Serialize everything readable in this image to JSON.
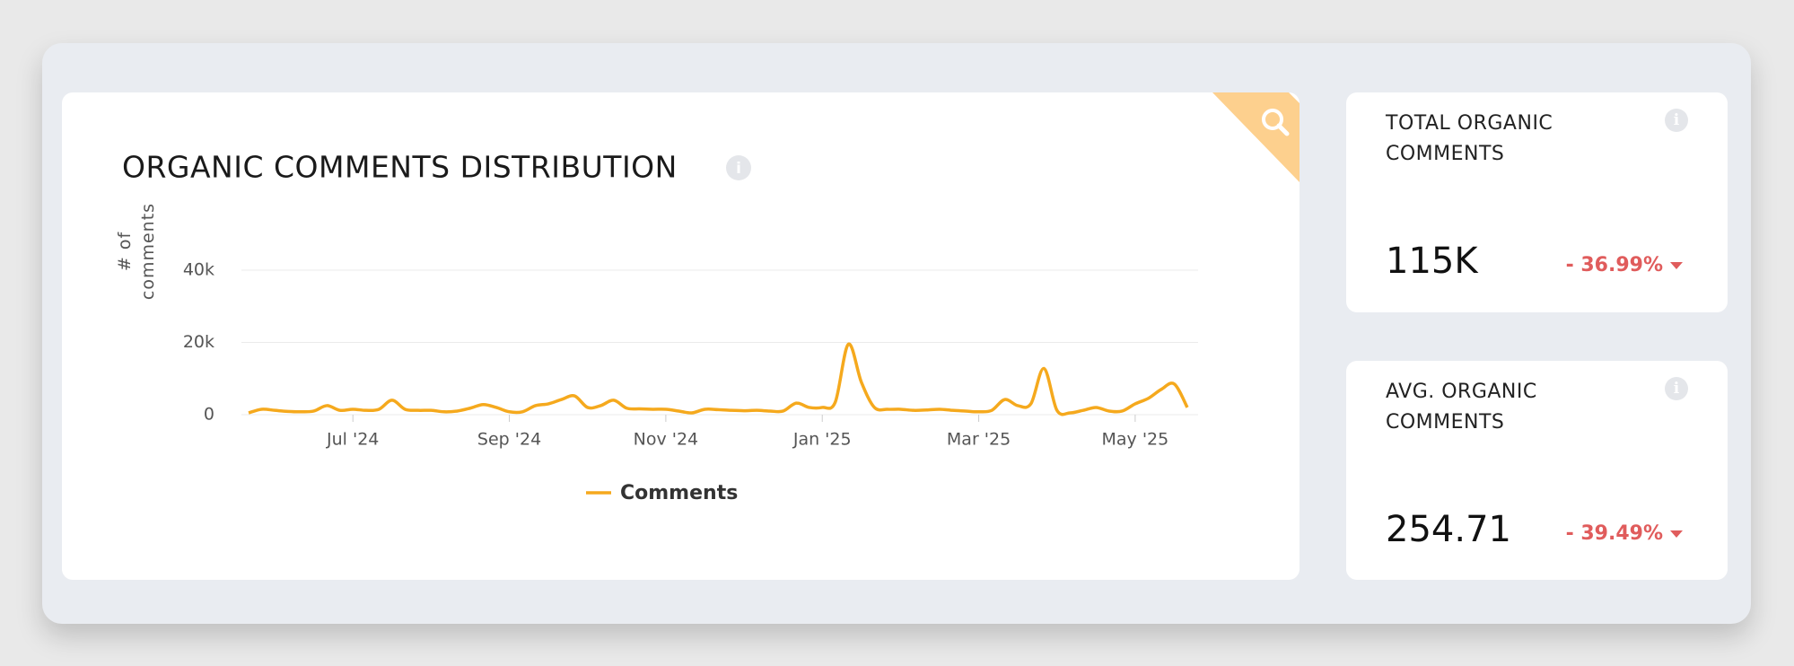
{
  "chart_data": {
    "type": "line",
    "title": "ORGANIC COMMENTS DISTRIBUTION",
    "y_label": "# of comments",
    "categories": [
      null,
      null,
      null,
      null,
      null,
      null,
      null,
      null,
      "Jul '24",
      null,
      null,
      null,
      null,
      null,
      null,
      null,
      null,
      null,
      null,
      null,
      "Sep '24",
      null,
      null,
      null,
      null,
      null,
      null,
      null,
      null,
      null,
      null,
      null,
      "Nov '24",
      null,
      null,
      null,
      null,
      null,
      null,
      null,
      null,
      null,
      null,
      null,
      "Jan '25",
      null,
      null,
      null,
      null,
      null,
      null,
      null,
      null,
      null,
      null,
      null,
      "Mar '25",
      null,
      null,
      null,
      null,
      null,
      null,
      null,
      null,
      null,
      null,
      null,
      "May '25",
      null,
      null,
      null,
      null
    ],
    "series": [
      {
        "name": "Comments",
        "color": "#f5a91d",
        "values": [
          500,
          1500,
          1200,
          900,
          800,
          1000,
          2500,
          1200,
          1500,
          1200,
          1500,
          4000,
          1500,
          1200,
          1200,
          800,
          1000,
          1800,
          2800,
          2000,
          800,
          800,
          2500,
          3000,
          4200,
          5200,
          2000,
          2500,
          4000,
          1800,
          1600,
          1500,
          1500,
          1000,
          500,
          1500,
          1400,
          1200,
          1100,
          1200,
          1000,
          1000,
          3200,
          2000,
          2000,
          3500,
          19500,
          9000,
          2000,
          1500,
          1500,
          1200,
          1300,
          1500,
          1200,
          1000,
          800,
          1200,
          4200,
          2500,
          3000,
          12800,
          1200,
          500,
          1200,
          2000,
          1000,
          1000,
          3000,
          4500,
          7000,
          8500,
          2000
        ]
      }
    ],
    "ylim": [
      0,
      40000
    ],
    "yticks": [
      0,
      {
        "value": 20000,
        "label": "20k"
      },
      {
        "value": 40000,
        "label": "40k"
      }
    ],
    "grid": true
  },
  "cards": [
    {
      "title": "TOTAL ORGANIC COMMENTS",
      "value": "115K",
      "change": "- 36.99%"
    },
    {
      "title": "AVG. ORGANIC COMMENTS",
      "value": "254.71",
      "change": "- 39.49%"
    }
  ]
}
